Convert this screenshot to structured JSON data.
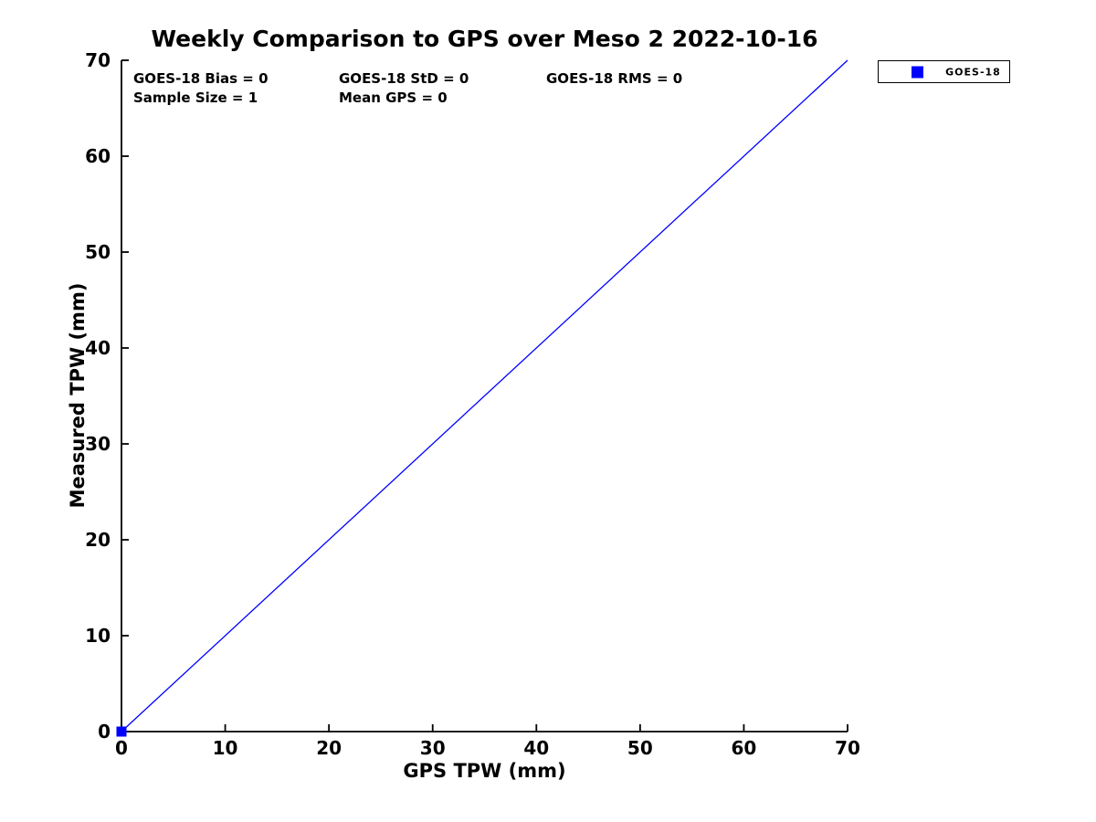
{
  "title": "Weekly Comparison to GPS over Meso 2 2022-10-16",
  "colors": {
    "series": "#0000ff",
    "axis": "#000000",
    "background": "#ffffff",
    "text": "#000000"
  },
  "stats": {
    "bias": "GOES-18 Bias = 0",
    "std": "GOES-18 StD = 0",
    "rms": "GOES-18 RMS = 0",
    "sample_size": "Sample Size = 1",
    "mean_gps": "Mean GPS = 0"
  },
  "legend": {
    "position": "outside-top-right",
    "entries": [
      {
        "label": "GOES-18",
        "marker": "square",
        "color": "#0000ff"
      }
    ]
  },
  "chart_data": {
    "type": "scatter",
    "title": "Weekly Comparison to GPS over Meso 2 2022-10-16",
    "xlabel": "GPS TPW (mm)",
    "ylabel": "Measured TPW (mm)",
    "xlim": [
      0,
      70
    ],
    "ylim": [
      0,
      70
    ],
    "xticks": [
      0,
      10,
      20,
      30,
      40,
      50,
      60,
      70
    ],
    "yticks": [
      0,
      10,
      20,
      30,
      40,
      50,
      60,
      70
    ],
    "grid": false,
    "tick_direction": "in",
    "spines": [
      "left",
      "bottom"
    ],
    "series": [
      {
        "name": "GOES-18",
        "type": "scatter",
        "marker": "square",
        "color": "#0000ff",
        "points": [
          [
            0,
            0
          ]
        ]
      }
    ],
    "reference_line": {
      "name": "identity-line",
      "color": "#0000ff",
      "from": [
        0,
        0
      ],
      "to": [
        70,
        70
      ]
    },
    "annotations": [
      "GOES-18 Bias = 0",
      "GOES-18 StD = 0",
      "GOES-18 RMS = 0",
      "Sample Size = 1",
      "Mean GPS = 0"
    ]
  }
}
